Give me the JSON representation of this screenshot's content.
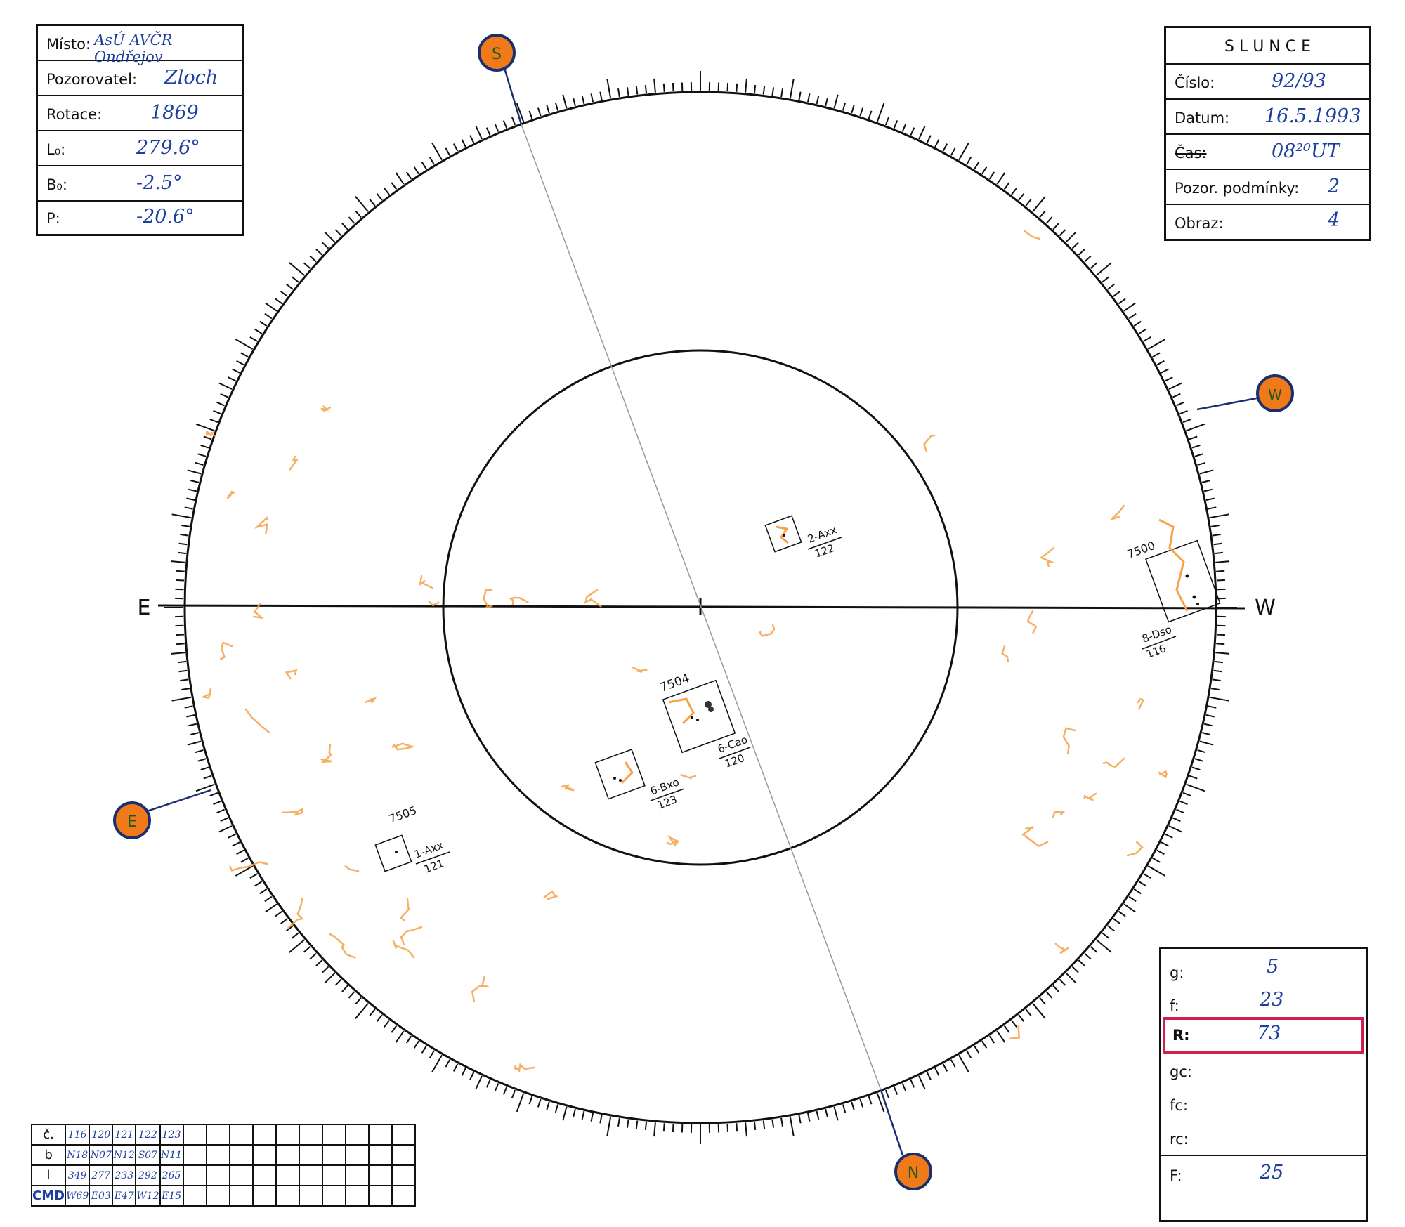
{
  "info_left": {
    "misto_label": "Místo:",
    "misto_value": "AsÚ AVČR Ondřejov",
    "pozorovatel_label": "Pozorovatel:",
    "pozorovatel_value": "Zloch",
    "rotace_label": "Rotace:",
    "rotace_value": "1869",
    "l0_label": "L₀:",
    "l0_value": "279.6°",
    "b0_label": "B₀:",
    "b0_value": "-2.5°",
    "p_label": "P:",
    "p_value": "-20.6°"
  },
  "info_right": {
    "title": "S L U N C E",
    "cislo_label": "Číslo:",
    "cislo_value": "92/93",
    "datum_label": "Datum:",
    "datum_value": "16.5.1993",
    "cas_label": "Čas:",
    "cas_value": "08²⁰UT",
    "podminky_label": "Pozor. podmínky:",
    "podminky_value": "2",
    "obraz_label": "Obraz:",
    "obraz_value": "4"
  },
  "stats": {
    "g_label": "g:",
    "g_value": "5",
    "f_label": "f:",
    "f_value": "23",
    "r_label": "R:",
    "r_value": "73",
    "gc_label": "gc:",
    "gc_value": "",
    "fc_label": "fc:",
    "fc_value": "",
    "rc_label": "rc:",
    "rc_value": "",
    "F_label": "F:",
    "F_value": "25",
    "highlight_color": "#d0204f"
  },
  "table": {
    "headers": [
      "č.",
      "b",
      "l",
      "CMD"
    ],
    "cols": [
      [
        "116",
        "N18",
        "349",
        "W69"
      ],
      [
        "120",
        "N07",
        "277",
        "E03"
      ],
      [
        "121",
        "N12",
        "233",
        "E47"
      ],
      [
        "122",
        "S07",
        "292",
        "W12"
      ],
      [
        "123",
        "N11",
        "265",
        "E15"
      ]
    ],
    "empty_cols": 10
  },
  "compass": {
    "s": "S",
    "w": "W",
    "e": "E",
    "n": "N",
    "axis_east": "E",
    "axis_west": "W",
    "marker_color": "#f07a1a",
    "marker_rim": "#1a2f70"
  },
  "groups": [
    {
      "number": "",
      "type": "2-Axx",
      "id": "122"
    },
    {
      "number": "7500",
      "type": "8-Dso",
      "id": "116"
    },
    {
      "number": "7504",
      "type": "6-Cao",
      "id": "120"
    },
    {
      "number": "",
      "type": "6-Bxo",
      "id": "123"
    },
    {
      "number": "7505",
      "type": "1-Axx",
      "id": "121"
    }
  ],
  "faculae_color": "#f5a24a"
}
